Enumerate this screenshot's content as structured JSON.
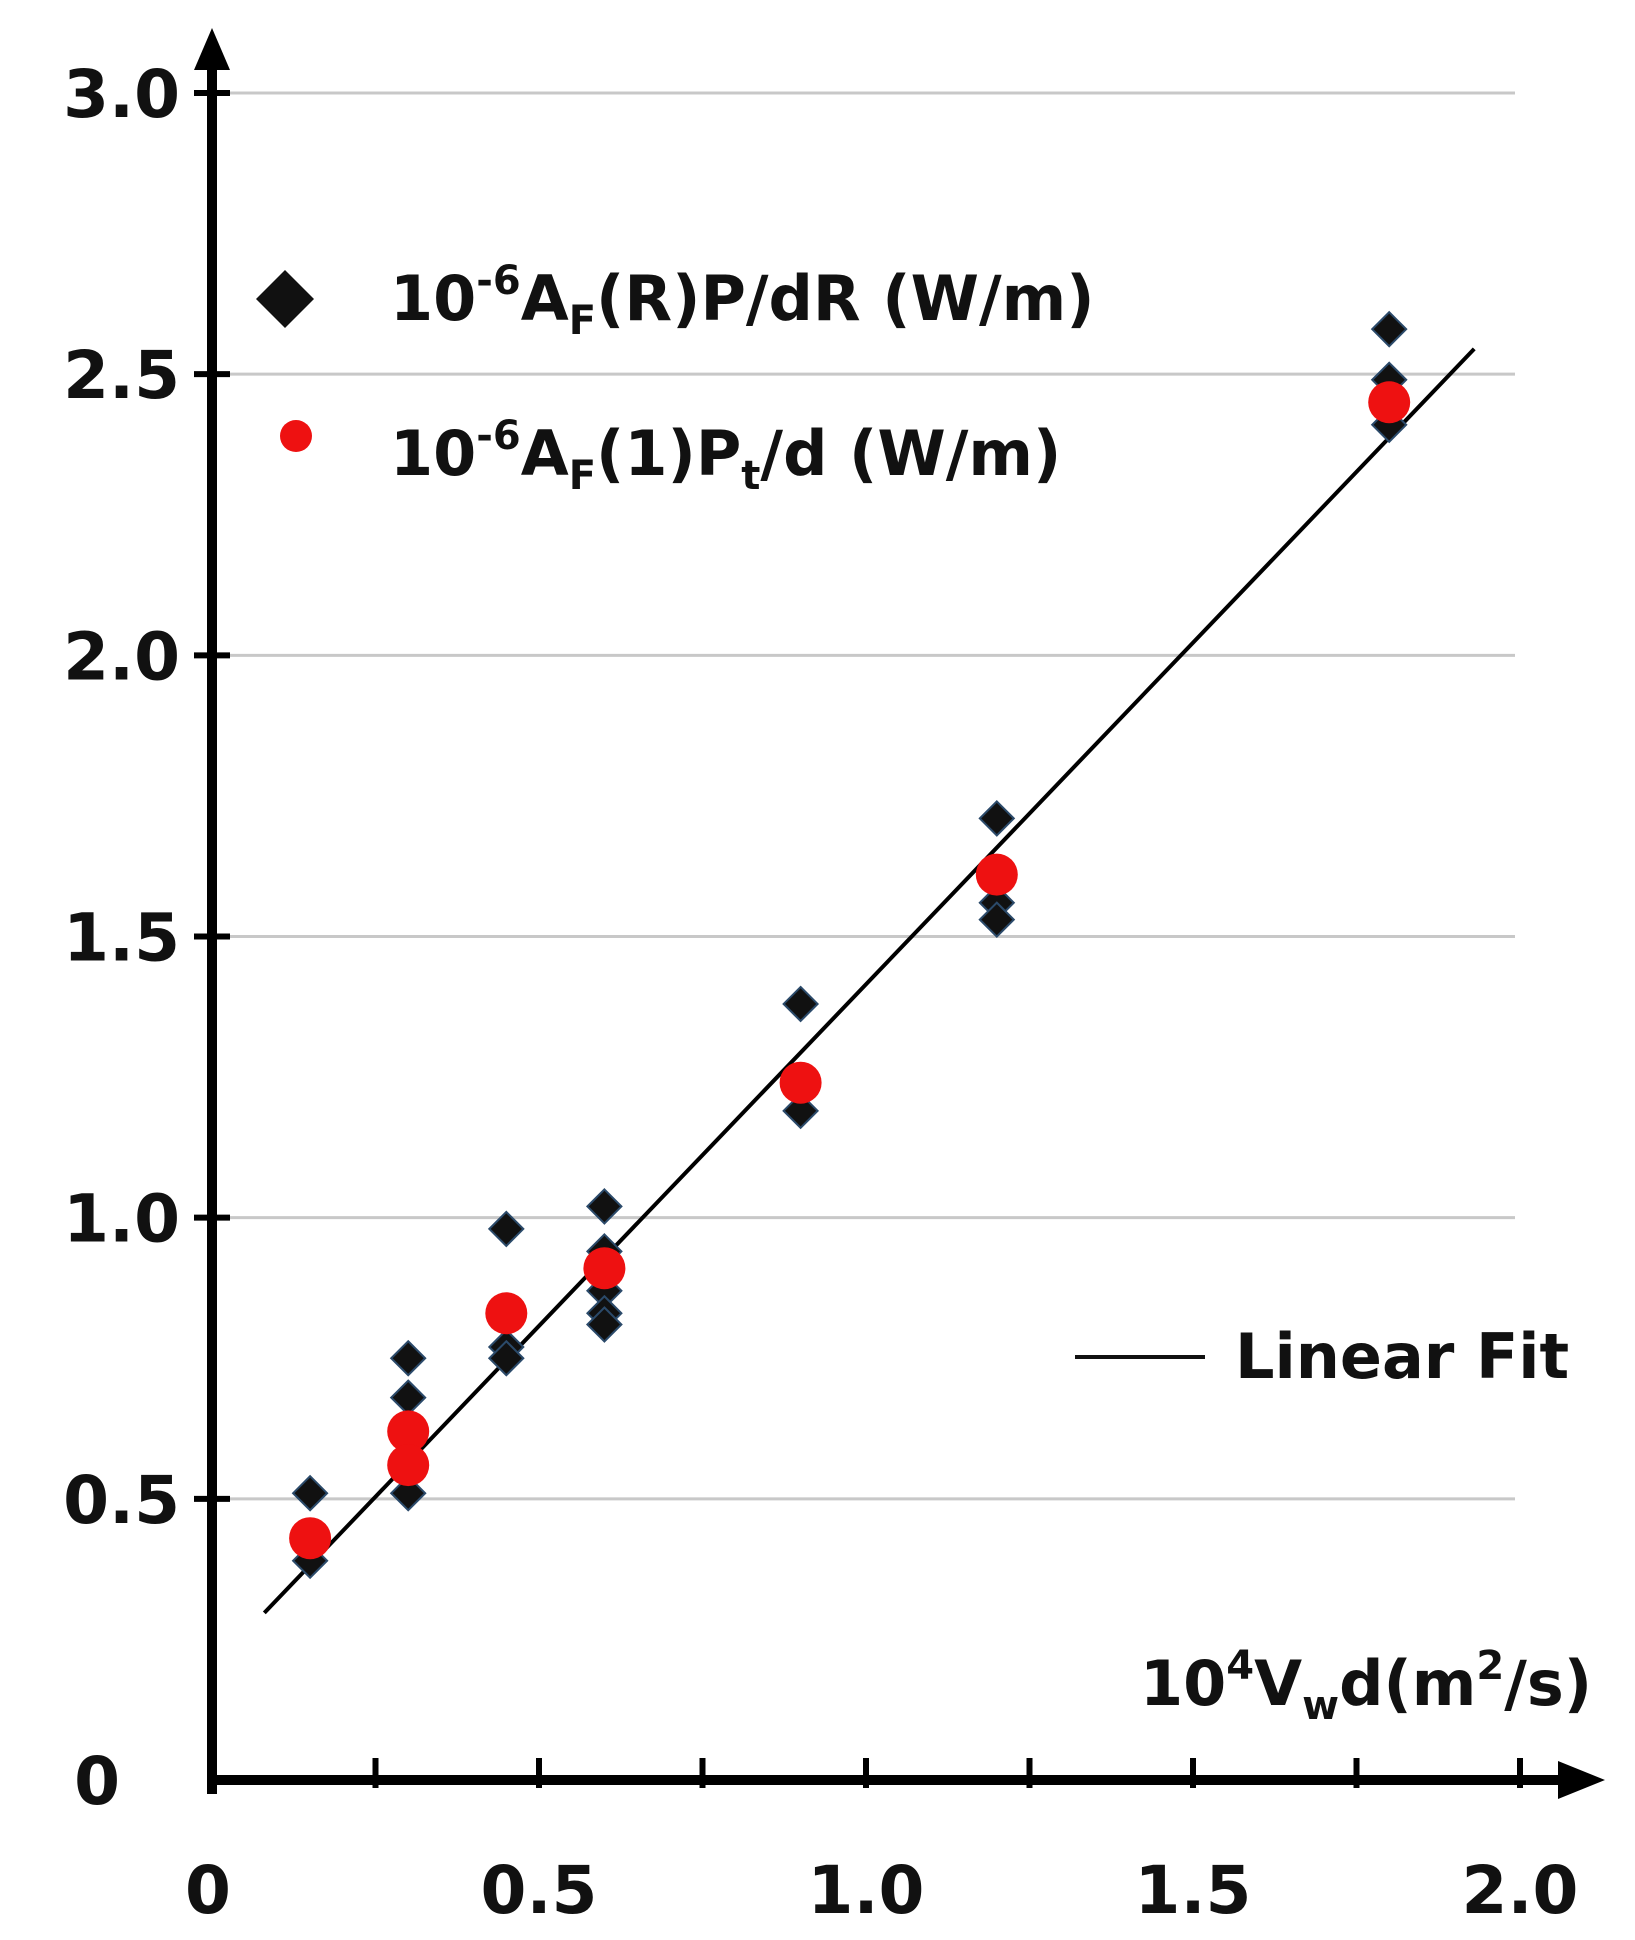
{
  "chart_data": {
    "type": "scatter",
    "title": "",
    "xlabel": {
      "base": "10",
      "exp": "4",
      "V": "V",
      "sub": "w",
      "tail": "d(m",
      "exp2": "2",
      "end": "/s)"
    },
    "ylabel": "",
    "xlim": [
      0,
      2.0
    ],
    "ylim": [
      0,
      3.0
    ],
    "x_ticks": [
      0,
      0.5,
      1.0,
      1.5,
      2.0
    ],
    "x_tick_labels": [
      "0",
      "0.5",
      "1.0",
      "1.5",
      "2.0"
    ],
    "x_minor_step": 0.25,
    "y_ticks": [
      0,
      0.5,
      1.0,
      1.5,
      2.0,
      2.5,
      3.0
    ],
    "y_tick_labels": [
      "0",
      "0.5",
      "1.0",
      "1.5",
      "2.0",
      "2.5",
      "3.0"
    ],
    "gridlines_y": [
      0.5,
      1.0,
      1.5,
      2.0,
      2.5,
      3.0
    ],
    "series": [
      {
        "name": "10-6AF(R)P/dR (W/m)",
        "marker": "diamond",
        "color": "#111111",
        "points": [
          [
            0.15,
            0.51
          ],
          [
            0.15,
            0.39
          ],
          [
            0.3,
            0.75
          ],
          [
            0.3,
            0.68
          ],
          [
            0.3,
            0.61
          ],
          [
            0.3,
            0.55
          ],
          [
            0.3,
            0.51
          ],
          [
            0.45,
            0.98
          ],
          [
            0.45,
            0.77
          ],
          [
            0.45,
            0.75
          ],
          [
            0.6,
            1.02
          ],
          [
            0.6,
            0.94
          ],
          [
            0.6,
            0.87
          ],
          [
            0.6,
            0.83
          ],
          [
            0.6,
            0.81
          ],
          [
            0.9,
            1.38
          ],
          [
            0.9,
            1.19
          ],
          [
            1.2,
            1.71
          ],
          [
            1.2,
            1.56
          ],
          [
            1.2,
            1.53
          ],
          [
            1.8,
            2.58
          ],
          [
            1.8,
            2.49
          ],
          [
            1.8,
            2.41
          ]
        ]
      },
      {
        "name": "10-6AF(1)Pt/d (W/m)",
        "marker": "circle",
        "color": "#ee1111",
        "points": [
          [
            0.15,
            0.43
          ],
          [
            0.3,
            0.62
          ],
          [
            0.3,
            0.56
          ],
          [
            0.45,
            0.83
          ],
          [
            0.6,
            0.91
          ],
          [
            0.9,
            1.24
          ],
          [
            1.2,
            1.61
          ],
          [
            1.8,
            2.45
          ]
        ]
      }
    ],
    "fit": {
      "name": "Linear Fit",
      "x_range": [
        0.08,
        1.93
      ],
      "slope": 1.215,
      "intercept": 0.2
    },
    "legend": {
      "entry1": {
        "base": "10",
        "exp": "-6",
        "A": "A",
        "sub": "F",
        "rest": "(R)P/dR (W/m)"
      },
      "entry2": {
        "base": "10",
        "exp": "-6",
        "A": "A",
        "sub": "F",
        "mid": "(1)P",
        "sub2": "t",
        "rest": "/d (W/m)"
      },
      "fit_label": "Linear Fit",
      "position": "top-left"
    }
  }
}
